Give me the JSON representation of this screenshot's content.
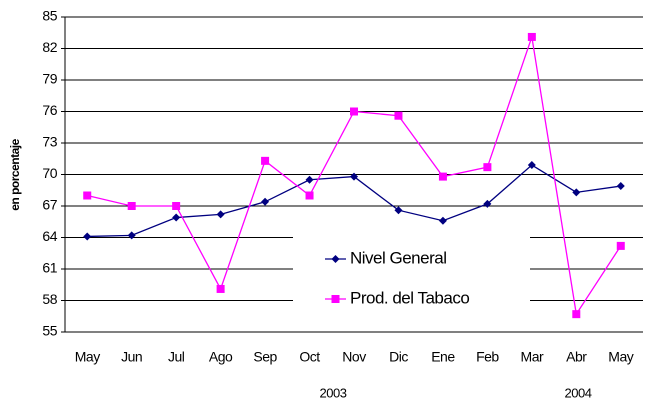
{
  "chart_data": {
    "type": "line",
    "y_label": "en porcentaje",
    "categories": [
      "May",
      "Jun",
      "Jul",
      "Ago",
      "Sep",
      "Oct",
      "Nov",
      "Dic",
      "Ene",
      "Feb",
      "Mar",
      "Abr",
      "May"
    ],
    "year_labels": [
      "2003",
      "2004"
    ],
    "series": [
      {
        "name": "Nivel General",
        "color": "#000080",
        "marker": "diamond",
        "values": [
          64.1,
          64.2,
          65.9,
          66.2,
          67.4,
          69.5,
          69.8,
          66.6,
          65.6,
          67.2,
          70.9,
          68.3,
          68.9
        ]
      },
      {
        "name": "Prod. del Tabaco",
        "color": "#ff00ff",
        "marker": "square",
        "values": [
          68.0,
          67.0,
          67.0,
          59.1,
          71.3,
          68.0,
          76.0,
          75.6,
          69.8,
          70.7,
          83.1,
          56.7,
          63.2
        ]
      }
    ],
    "ylim": [
      55,
      85
    ],
    "yticks": [
      55,
      58,
      61,
      64,
      67,
      70,
      73,
      76,
      79,
      82,
      85
    ],
    "grid": true
  }
}
